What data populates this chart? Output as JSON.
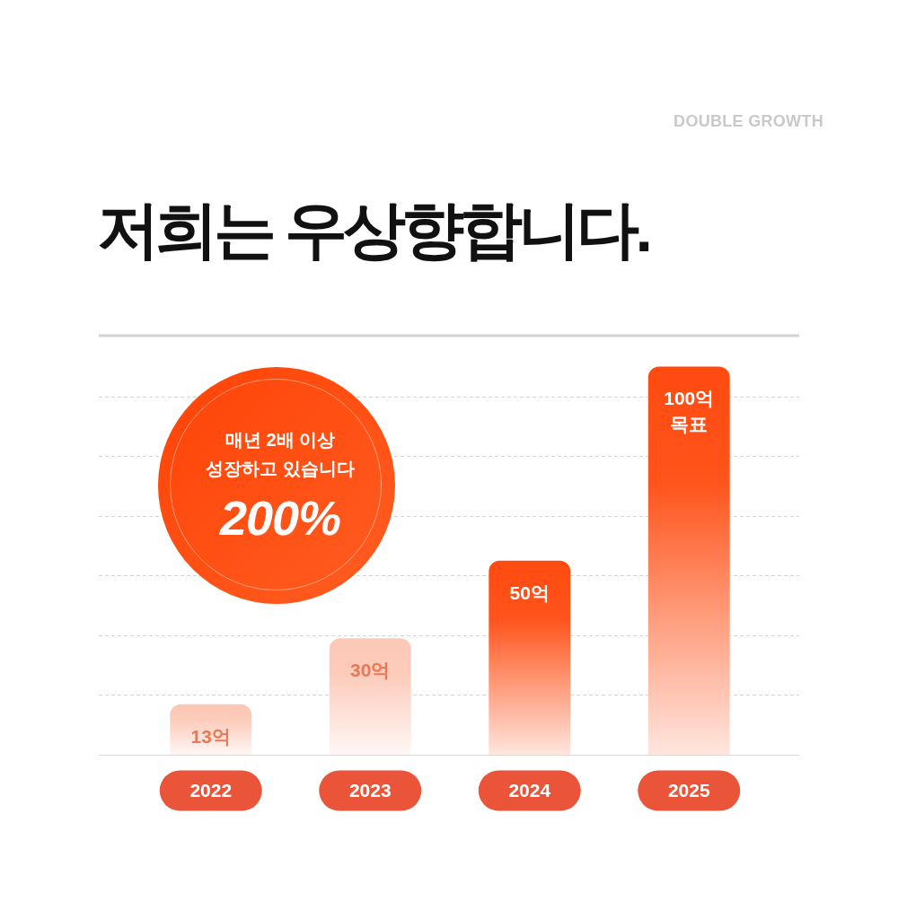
{
  "chart_data": {
    "type": "bar",
    "title": "저희는 우상향합니다.",
    "subtitle": "DOUBLE GROWTH",
    "categories": [
      "2022",
      "2023",
      "2024",
      "2025"
    ],
    "values": [
      13,
      30,
      50,
      100
    ],
    "colors": [
      "#fcc8b6",
      "#fcc8b6",
      "#ff4b10",
      "#ff4b10"
    ],
    "value_labels": [
      "13억",
      "30억",
      "50억",
      "100억 목표"
    ],
    "ylim": [
      0,
      108
    ],
    "yticks": [
      {
        "value": 15.4,
        "label": null
      },
      {
        "value": 30.8,
        "label": null
      },
      {
        "value": 46.3,
        "label": null
      },
      {
        "value": 61.5,
        "label": null
      },
      {
        "value": 77.1,
        "label": null
      },
      {
        "value": 92.3,
        "label": null
      }
    ],
    "grid": "y",
    "tick_labels": "x",
    "annotations": [
      "매년 2배 이상 성장하고 있습니다",
      "200%"
    ]
  }
}
